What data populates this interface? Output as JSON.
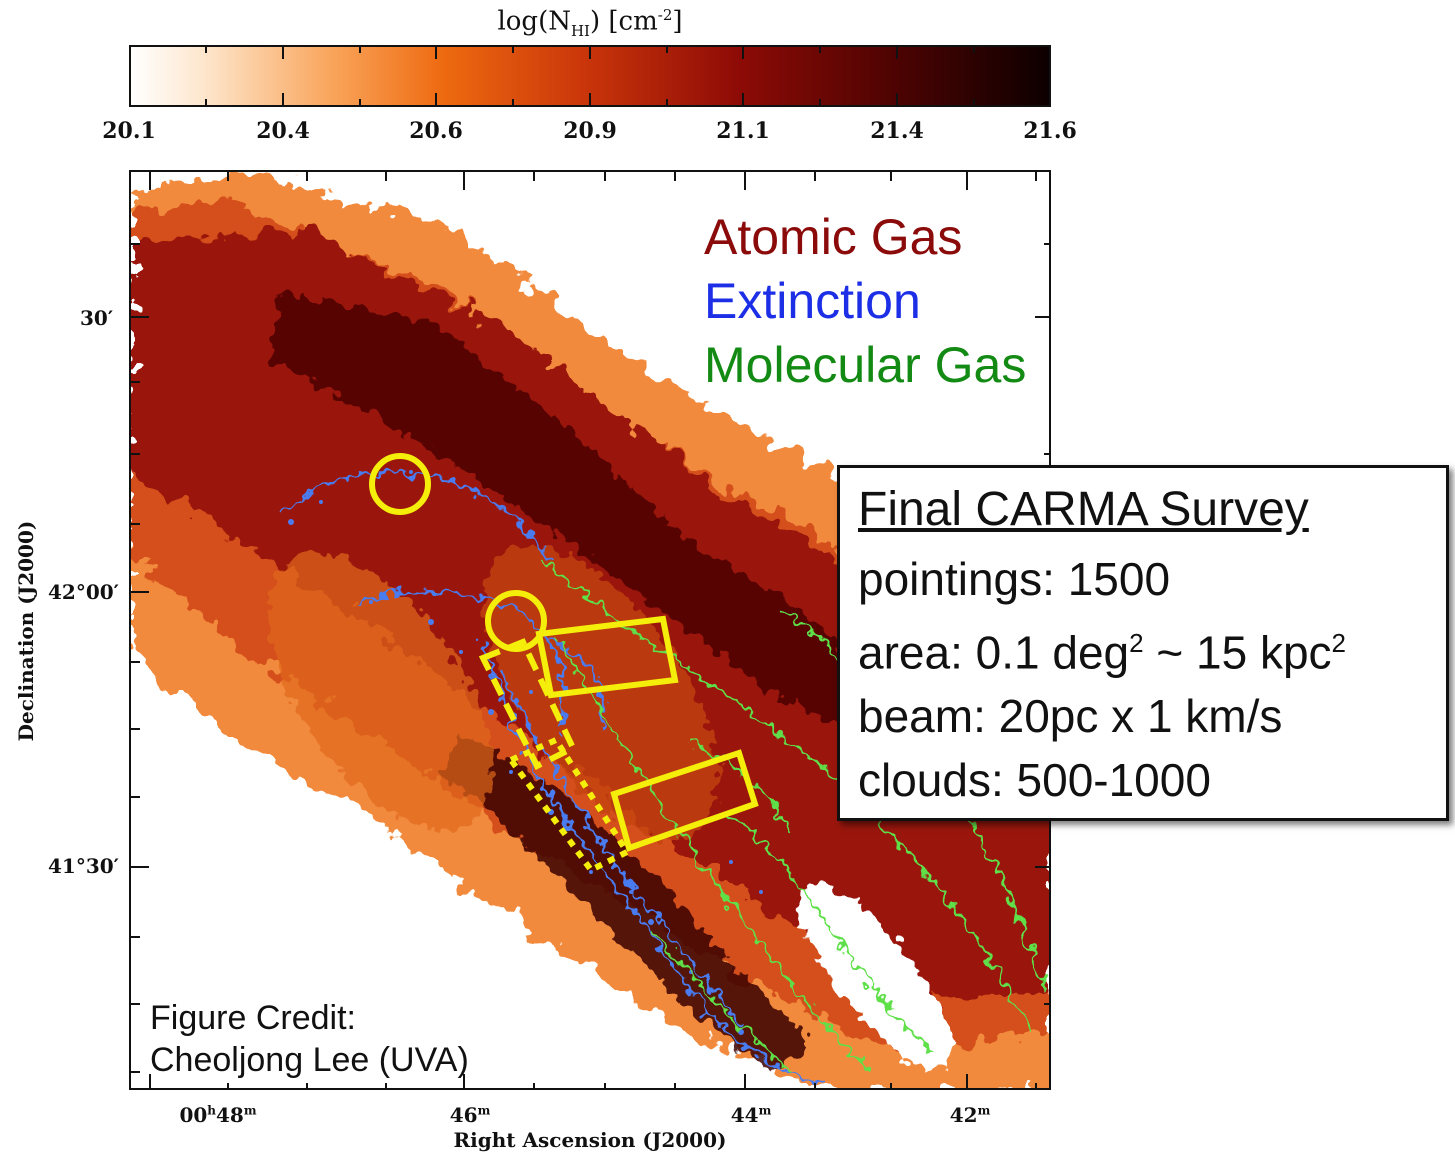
{
  "colorbar": {
    "title_main": "log(N",
    "title_sub": "HI",
    "title_unit": ") [cm",
    "title_sup": "-2",
    "title_end": "]",
    "ticks": [
      "20.1",
      "20.4",
      "20.6",
      "20.9",
      "21.1",
      "21.4",
      "21.6"
    ],
    "colors": [
      "#ffffff",
      "#f9a45a",
      "#ee6a10",
      "#c8340a",
      "#8e0b06",
      "#4a0302",
      "#0d0000"
    ]
  },
  "map": {
    "y_axis_label": "Declination (J2000)",
    "x_axis_label": "Right Ascension (J2000)",
    "y_ticks": [
      "30′",
      "42°00′",
      "41°30′"
    ],
    "x_ticks": [
      {
        "main": "00",
        "sup1": "h",
        "mid": "48",
        "sup2": "m"
      },
      {
        "main": "46",
        "sup2": "m"
      },
      {
        "main": "44",
        "sup2": "m"
      },
      {
        "main": "42",
        "sup2": "m"
      }
    ]
  },
  "legend": {
    "atomic": {
      "label": "Atomic Gas",
      "color": "#8b0a0a"
    },
    "extinction": {
      "label": "Extinction",
      "color": "#1c2fe6"
    },
    "molecular": {
      "label": "Molecular Gas",
      "color": "#138a13"
    }
  },
  "overlay_colors": {
    "extinction_contour": "#4a7bf0",
    "molecular_contour": "#5fe04a",
    "survey_field": "#f5ee0a"
  },
  "info_box": {
    "title": "Final CARMA Survey",
    "pointings": "pointings: 1500",
    "area_prefix": "area: 0.1 deg",
    "area_sup1": "2",
    "area_mid": " ~ 15 kpc",
    "area_sup2": "2",
    "beam": "beam: 20pc x 1 km/s",
    "clouds": "clouds: 500-1000"
  },
  "credit": {
    "line1": "Figure Credit:",
    "line2": "Cheoljong Lee (UVA)"
  }
}
